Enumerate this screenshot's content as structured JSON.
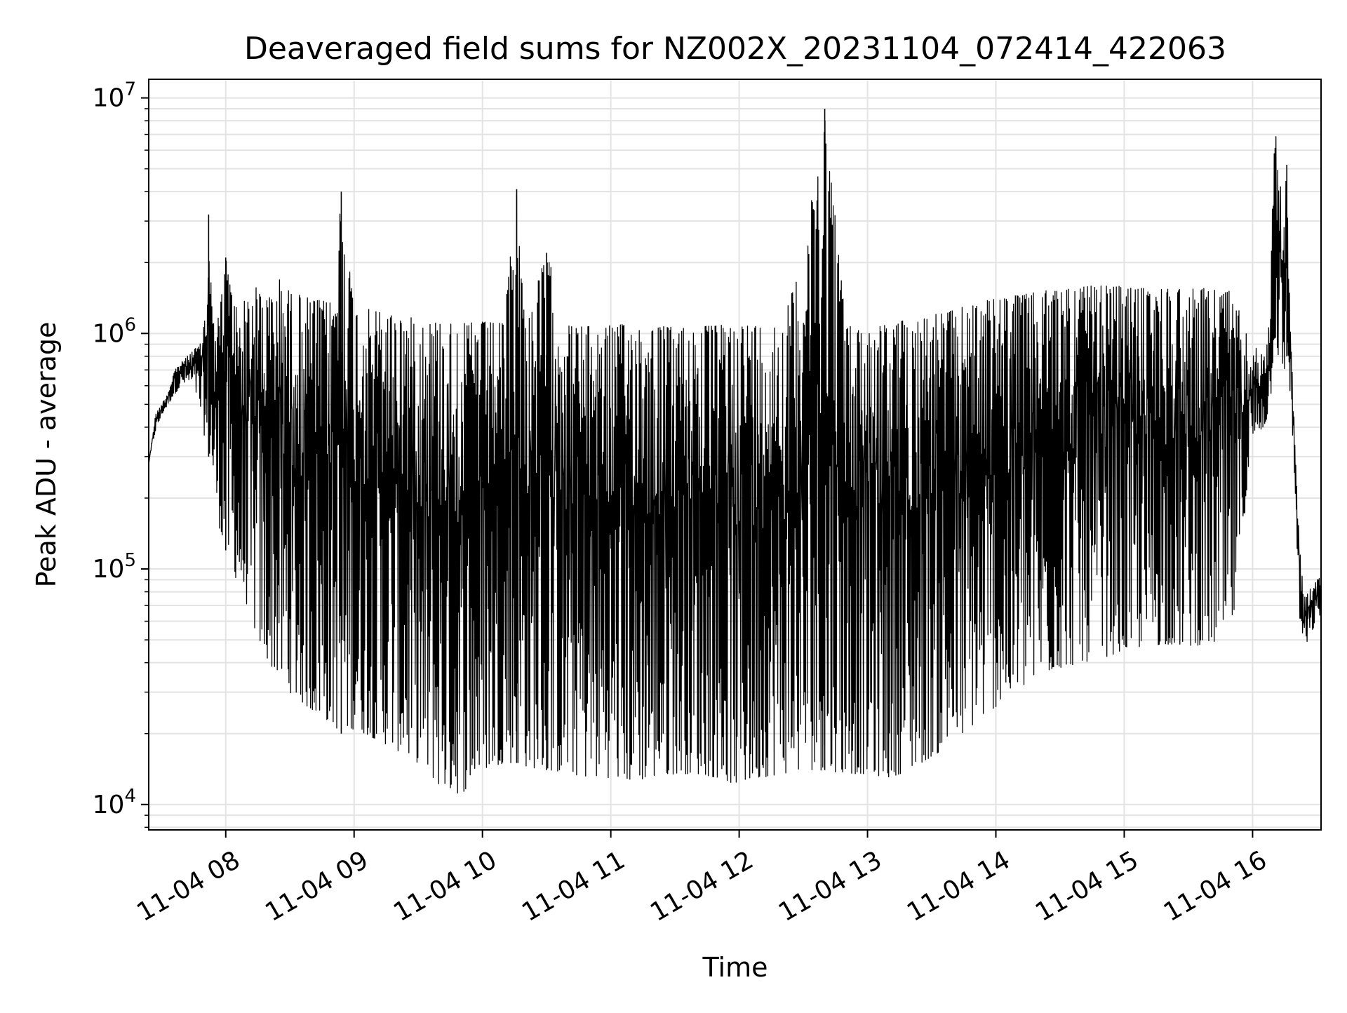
{
  "chart_data": {
    "type": "line",
    "title": "Deaveraged field sums for NZ002X_20231104_072414_422063",
    "xlabel": "Time",
    "ylabel": "Peak ADU - average",
    "x_tick_labels": [
      "11-04 08",
      "11-04 09",
      "11-04 10",
      "11-04 11",
      "11-04 12",
      "11-04 13",
      "11-04 14",
      "11-04 15",
      "11-04 16"
    ],
    "x_ticks": [
      "2023-11-04 08:00",
      "2023-11-04 09:00",
      "2023-11-04 10:00",
      "2023-11-04 11:00",
      "2023-11-04 12:00",
      "2023-11-04 13:00",
      "2023-11-04 14:00",
      "2023-11-04 15:00",
      "2023-11-04 16:00"
    ],
    "xlim": [
      "2023-11-04 07:24",
      "2023-11-04 16:32"
    ],
    "y_scale": "log",
    "y_tick_values": [
      10000,
      100000,
      1000000,
      10000000
    ],
    "y_tick_labels": [
      {
        "base": "10",
        "exp": "4"
      },
      {
        "base": "10",
        "exp": "5"
      },
      {
        "base": "10",
        "exp": "6"
      },
      {
        "base": "10",
        "exp": "7"
      }
    ],
    "ylim": [
      7800,
      12000000
    ],
    "grid": true,
    "line_color": "#000000",
    "series": [
      {
        "x": [
          "2023-11-04 07:24",
          "2023-11-04 07:27",
          "2023-11-04 07:30",
          "2023-11-04 07:33",
          "2023-11-04 07:36",
          "2023-11-04 07:39",
          "2023-11-04 07:42",
          "2023-11-04 07:45",
          "2023-11-04 07:48",
          "2023-11-04 07:51",
          "2023-11-04 07:52",
          "2023-11-04 07:54",
          "2023-11-04 07:57",
          "2023-11-04 08:00",
          "2023-11-04 08:05",
          "2023-11-04 08:10",
          "2023-11-04 08:15",
          "2023-11-04 08:20",
          "2023-11-04 08:25",
          "2023-11-04 08:30",
          "2023-11-04 08:40",
          "2023-11-04 08:50",
          "2023-11-04 08:54",
          "2023-11-04 09:00",
          "2023-11-04 09:10",
          "2023-11-04 09:20",
          "2023-11-04 09:30",
          "2023-11-04 09:40",
          "2023-11-04 09:50",
          "2023-11-04 10:00",
          "2023-11-04 10:10",
          "2023-11-04 10:16",
          "2023-11-04 10:20",
          "2023-11-04 10:30",
          "2023-11-04 10:40",
          "2023-11-04 10:50",
          "2023-11-04 11:00",
          "2023-11-04 11:10",
          "2023-11-04 11:20",
          "2023-11-04 11:30",
          "2023-11-04 11:40",
          "2023-11-04 11:50",
          "2023-11-04 12:00",
          "2023-11-04 12:10",
          "2023-11-04 12:20",
          "2023-11-04 12:30",
          "2023-11-04 12:40",
          "2023-11-04 12:50",
          "2023-11-04 13:00",
          "2023-11-04 13:10",
          "2023-11-04 13:20",
          "2023-11-04 13:30",
          "2023-11-04 13:40",
          "2023-11-04 13:50",
          "2023-11-04 14:00",
          "2023-11-04 14:10",
          "2023-11-04 14:20",
          "2023-11-04 14:30",
          "2023-11-04 14:40",
          "2023-11-04 14:50",
          "2023-11-04 15:00",
          "2023-11-04 15:10",
          "2023-11-04 15:20",
          "2023-11-04 15:30",
          "2023-11-04 15:40",
          "2023-11-04 15:50",
          "2023-11-04 16:00",
          "2023-11-04 16:05",
          "2023-11-04 16:08",
          "2023-11-04 16:10",
          "2023-11-04 16:12",
          "2023-11-04 16:14",
          "2023-11-04 16:16",
          "2023-11-04 16:18",
          "2023-11-04 16:20",
          "2023-11-04 16:22",
          "2023-11-04 16:24",
          "2023-11-04 16:26",
          "2023-11-04 16:28",
          "2023-11-04 16:30",
          "2023-11-04 16:32"
        ],
        "upper": [
          280000,
          450000,
          500000,
          560000,
          700000,
          750000,
          800000,
          850000,
          900000,
          1300000,
          3200000,
          1100000,
          1200000,
          2100000,
          1300000,
          1400000,
          1600000,
          1400000,
          1700000,
          1500000,
          1400000,
          1350000,
          4000000,
          1300000,
          1250000,
          1200000,
          1150000,
          1120000,
          1100000,
          1120000,
          1100000,
          4100000,
          1100000,
          2200000,
          1080000,
          1070000,
          1080000,
          1100000,
          1080000,
          1060000,
          1070000,
          1080000,
          1100000,
          1080000,
          1100000,
          2100000,
          9000000,
          1080000,
          1050000,
          1100000,
          1150000,
          1200000,
          1250000,
          1350000,
          1400000,
          1450000,
          1500000,
          1550000,
          1580000,
          1600000,
          1580000,
          1550000,
          1550000,
          1560000,
          1550000,
          1520000,
          900000,
          800000,
          1200000,
          6500000,
          7400000,
          2500000,
          5200000,
          1000000,
          300000,
          130000,
          75000,
          80000,
          85000,
          90000,
          92000
        ],
        "lower": [
          280000,
          380000,
          450000,
          500000,
          550000,
          600000,
          620000,
          600000,
          480000,
          320000,
          300000,
          250000,
          150000,
          120000,
          90000,
          70000,
          50000,
          40000,
          35000,
          30000,
          25000,
          22000,
          20000,
          21000,
          19000,
          17000,
          15000,
          12000,
          11000,
          14000,
          15000,
          15000,
          14500,
          14000,
          13500,
          13000,
          13000,
          12500,
          13000,
          13500,
          13500,
          13000,
          12000,
          13000,
          13500,
          14000,
          14000,
          13500,
          13500,
          13000,
          14000,
          16000,
          18000,
          22000,
          26000,
          30000,
          35000,
          38000,
          40000,
          42000,
          45000,
          47000,
          48000,
          47000,
          48000,
          50000,
          350000,
          400000,
          450000,
          900000,
          800000,
          600000,
          800000,
          500000,
          200000,
          60000,
          45000,
          50000,
          55000,
          60000,
          65000
        ]
      }
    ]
  }
}
